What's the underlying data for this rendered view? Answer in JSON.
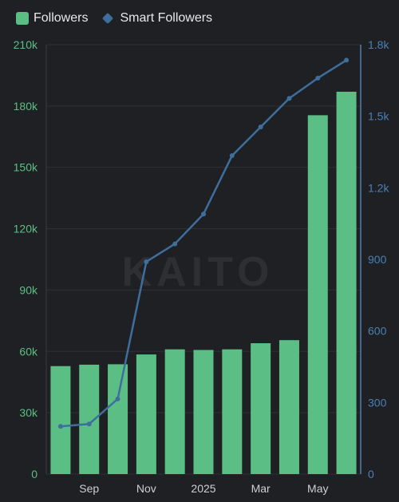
{
  "legend": {
    "bar_label": "Followers",
    "line_label": "Smart Followers"
  },
  "watermark": "KAITO",
  "colors": {
    "background": "#1f2024",
    "bar": "#5bbf85",
    "line": "#3e6e9d",
    "left_axis": "#5bbf85",
    "right_axis": "#4a80b4",
    "grid": "#2e3035"
  },
  "chart_data": {
    "type": "bar",
    "title": "",
    "grid": true,
    "legend_position": "top-left",
    "x_tick_labels": [
      "Sep",
      "Nov",
      "2025",
      "Mar",
      "May"
    ],
    "left_axis": {
      "ylim": [
        0,
        210000
      ],
      "ticks": [
        0,
        30000,
        60000,
        90000,
        120000,
        150000,
        180000,
        210000
      ],
      "tick_labels": [
        "0",
        "30k",
        "60k",
        "90k",
        "120k",
        "150k",
        "180k",
        "210k"
      ]
    },
    "right_axis": {
      "ylim": [
        0,
        1800
      ],
      "ticks": [
        0,
        300,
        600,
        900,
        1200,
        1500,
        1800
      ],
      "tick_labels": [
        "0",
        "300",
        "600",
        "900",
        "1.2k",
        "1.5k",
        "1.8k"
      ]
    },
    "series": [
      {
        "name": "Followers",
        "type": "bar",
        "axis": "left",
        "values": [
          52800,
          53500,
          53700,
          58500,
          61000,
          60700,
          61000,
          64000,
          65500,
          175500,
          187000
        ]
      },
      {
        "name": "Smart Followers",
        "type": "line",
        "axis": "right",
        "values": [
          200,
          210,
          315,
          890,
          965,
          1090,
          1335,
          1455,
          1575,
          1660,
          1735
        ]
      }
    ]
  }
}
